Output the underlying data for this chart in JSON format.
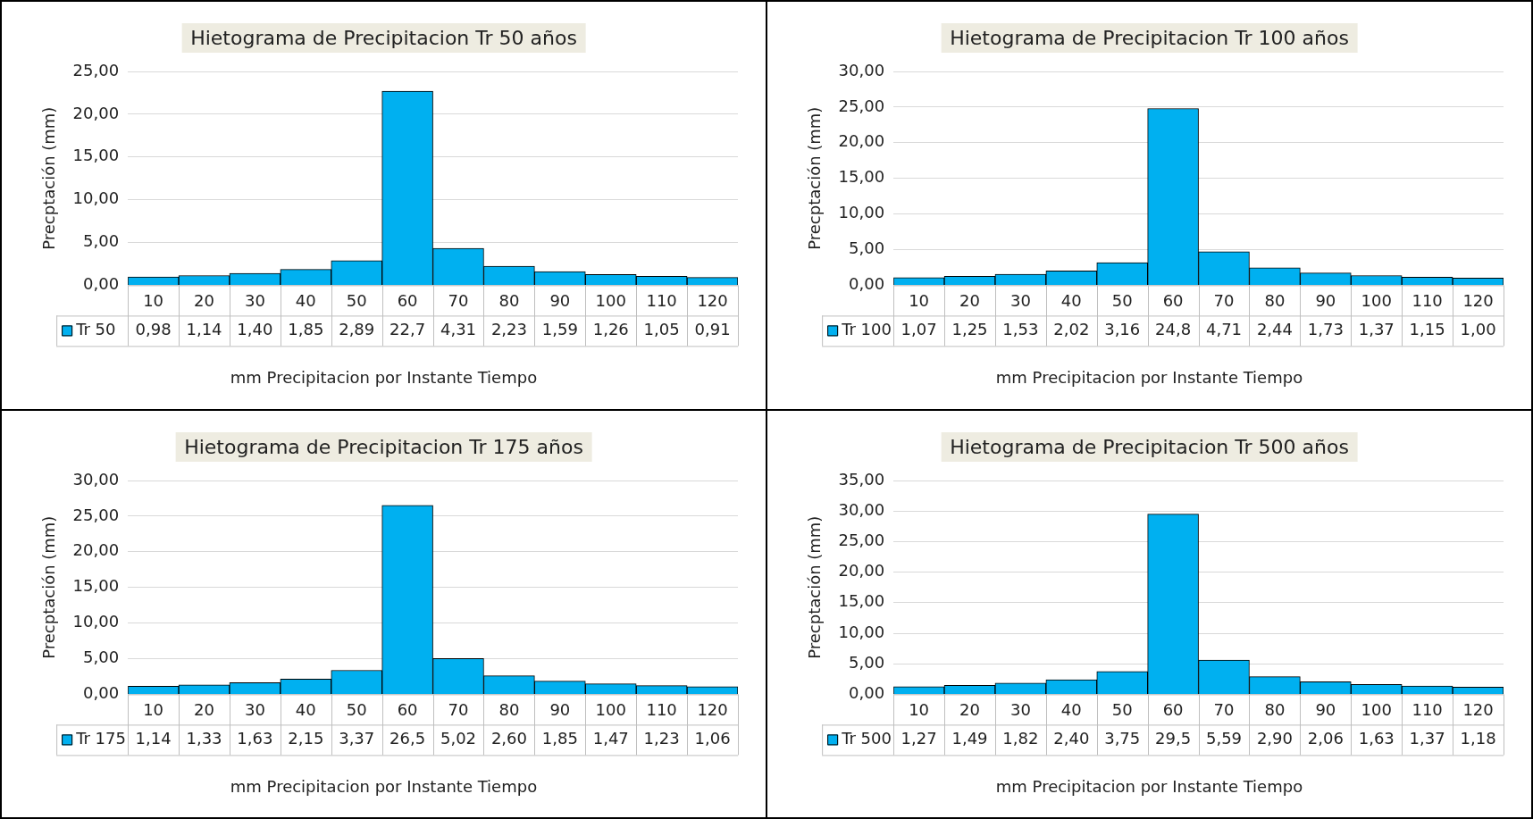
{
  "chart_data": [
    {
      "type": "bar",
      "title": "Hietograma de Precipitacion Tr 50 años",
      "xlabel": "mm Precipitacion por Instante Tiempo",
      "ylabel": "Precptación (mm)",
      "categories": [
        "10",
        "20",
        "30",
        "40",
        "50",
        "60",
        "70",
        "80",
        "90",
        "100",
        "110",
        "120"
      ],
      "series": [
        {
          "name": "Tr 50",
          "color": "#00b0f0",
          "values": [
            0.98,
            1.14,
            1.4,
            1.85,
            2.89,
            22.7,
            4.31,
            2.23,
            1.59,
            1.26,
            1.05,
            0.91
          ],
          "value_labels": [
            "0,98",
            "1,14",
            "1,40",
            "1,85",
            "2,89",
            "22,7",
            "4,31",
            "2,23",
            "1,59",
            "1,26",
            "1,05",
            "0,91"
          ]
        }
      ],
      "ylim": [
        0,
        25
      ],
      "yticks": [
        {
          "value": 0,
          "label": "0,00"
        },
        {
          "value": 5,
          "label": "5,00"
        },
        {
          "value": 10,
          "label": "10,00"
        },
        {
          "value": 15,
          "label": "15,00"
        },
        {
          "value": 20,
          "label": "20,00"
        },
        {
          "value": 25,
          "label": "25,00"
        }
      ],
      "grid": "y",
      "legend": "bottom left"
    },
    {
      "type": "bar",
      "title": "Hietograma de Precipitacion Tr 100 años",
      "xlabel": "mm Precipitacion por Instante Tiempo",
      "ylabel": "Precptación (mm)",
      "categories": [
        "10",
        "20",
        "30",
        "40",
        "50",
        "60",
        "70",
        "80",
        "90",
        "100",
        "110",
        "120"
      ],
      "series": [
        {
          "name": "Tr 100",
          "color": "#00b0f0",
          "values": [
            1.07,
            1.25,
            1.53,
            2.02,
            3.16,
            24.8,
            4.71,
            2.44,
            1.73,
            1.37,
            1.15,
            1.0
          ],
          "value_labels": [
            "1,07",
            "1,25",
            "1,53",
            "2,02",
            "3,16",
            "24,8",
            "4,71",
            "2,44",
            "1,73",
            "1,37",
            "1,15",
            "1,00"
          ]
        }
      ],
      "ylim": [
        0,
        30
      ],
      "yticks": [
        {
          "value": 0,
          "label": "0,00"
        },
        {
          "value": 5,
          "label": "5,00"
        },
        {
          "value": 10,
          "label": "10,00"
        },
        {
          "value": 15,
          "label": "15,00"
        },
        {
          "value": 20,
          "label": "20,00"
        },
        {
          "value": 25,
          "label": "25,00"
        },
        {
          "value": 30,
          "label": "30,00"
        }
      ],
      "grid": "y",
      "legend": "bottom left"
    },
    {
      "type": "bar",
      "title": "Hietograma de Precipitacion Tr 175 años",
      "xlabel": "mm Precipitacion por Instante Tiempo",
      "ylabel": "Precptación (mm)",
      "categories": [
        "10",
        "20",
        "30",
        "40",
        "50",
        "60",
        "70",
        "80",
        "90",
        "100",
        "110",
        "120"
      ],
      "series": [
        {
          "name": "Tr 175",
          "color": "#00b0f0",
          "values": [
            1.14,
            1.33,
            1.63,
            2.15,
            3.37,
            26.5,
            5.02,
            2.6,
            1.85,
            1.47,
            1.23,
            1.06
          ],
          "value_labels": [
            "1,14",
            "1,33",
            "1,63",
            "2,15",
            "3,37",
            "26,5",
            "5,02",
            "2,60",
            "1,85",
            "1,47",
            "1,23",
            "1,06"
          ]
        }
      ],
      "ylim": [
        0,
        30
      ],
      "yticks": [
        {
          "value": 0,
          "label": "0,00"
        },
        {
          "value": 5,
          "label": "5,00"
        },
        {
          "value": 10,
          "label": "10,00"
        },
        {
          "value": 15,
          "label": "15,00"
        },
        {
          "value": 20,
          "label": "20,00"
        },
        {
          "value": 25,
          "label": "25,00"
        },
        {
          "value": 30,
          "label": "30,00"
        }
      ],
      "grid": "y",
      "legend": "bottom left"
    },
    {
      "type": "bar",
      "title": "Hietograma de Precipitacion Tr 500 años",
      "xlabel": "mm Precipitacion por Instante Tiempo",
      "ylabel": "Precptación (mm)",
      "categories": [
        "10",
        "20",
        "30",
        "40",
        "50",
        "60",
        "70",
        "80",
        "90",
        "100",
        "110",
        "120"
      ],
      "series": [
        {
          "name": "Tr 500",
          "color": "#00b0f0",
          "values": [
            1.27,
            1.49,
            1.82,
            2.4,
            3.75,
            29.5,
            5.59,
            2.9,
            2.06,
            1.63,
            1.37,
            1.18
          ],
          "value_labels": [
            "1,27",
            "1,49",
            "1,82",
            "2,40",
            "3,75",
            "29,5",
            "5,59",
            "2,90",
            "2,06",
            "1,63",
            "1,37",
            "1,18"
          ]
        }
      ],
      "ylim": [
        0,
        35
      ],
      "yticks": [
        {
          "value": 0,
          "label": "0,00"
        },
        {
          "value": 5,
          "label": "5,00"
        },
        {
          "value": 10,
          "label": "10,00"
        },
        {
          "value": 15,
          "label": "15,00"
        },
        {
          "value": 20,
          "label": "20,00"
        },
        {
          "value": 25,
          "label": "25,00"
        },
        {
          "value": 30,
          "label": "30,00"
        },
        {
          "value": 35,
          "label": "35,00"
        }
      ],
      "grid": "y",
      "legend": "bottom left"
    }
  ]
}
